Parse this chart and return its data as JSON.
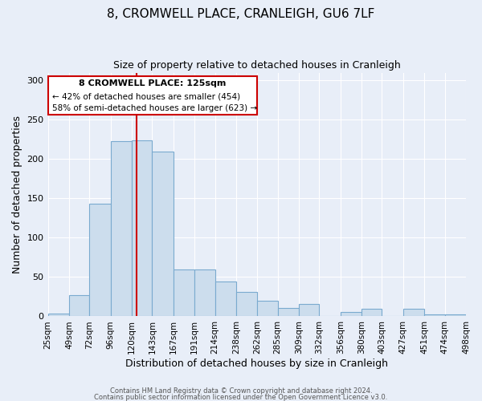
{
  "title": "8, CROMWELL PLACE, CRANLEIGH, GU6 7LF",
  "subtitle": "Size of property relative to detached houses in Cranleigh",
  "xlabel": "Distribution of detached houses by size in Cranleigh",
  "ylabel": "Number of detached properties",
  "categories": [
    "25sqm",
    "49sqm",
    "72sqm",
    "96sqm",
    "120sqm",
    "143sqm",
    "167sqm",
    "191sqm",
    "214sqm",
    "238sqm",
    "262sqm",
    "285sqm",
    "309sqm",
    "332sqm",
    "356sqm",
    "380sqm",
    "403sqm",
    "427sqm",
    "451sqm",
    "474sqm",
    "498sqm"
  ],
  "bin_edges": [
    25,
    49,
    72,
    96,
    120,
    143,
    167,
    191,
    214,
    238,
    262,
    285,
    309,
    332,
    356,
    380,
    403,
    427,
    451,
    474,
    498
  ],
  "bar_heights": [
    4,
    27,
    143,
    223,
    224,
    210,
    60,
    60,
    44,
    31,
    20,
    11,
    16,
    0,
    6,
    10,
    0,
    10,
    2,
    2
  ],
  "bar_color": "#ccdded",
  "bar_edge_color": "#7aaacf",
  "property_value": 125,
  "vline_color": "#cc0000",
  "annotation_title": "8 CROMWELL PLACE: 125sqm",
  "annotation_line1": "← 42% of detached houses are smaller (454)",
  "annotation_line2": "58% of semi-detached houses are larger (623) →",
  "annotation_box_edge": "#cc0000",
  "ylim": [
    0,
    310
  ],
  "yticks": [
    0,
    50,
    100,
    150,
    200,
    250,
    300
  ],
  "background_color": "#e8eef8",
  "footer1": "Contains HM Land Registry data © Crown copyright and database right 2024.",
  "footer2": "Contains public sector information licensed under the Open Government Licence v3.0."
}
